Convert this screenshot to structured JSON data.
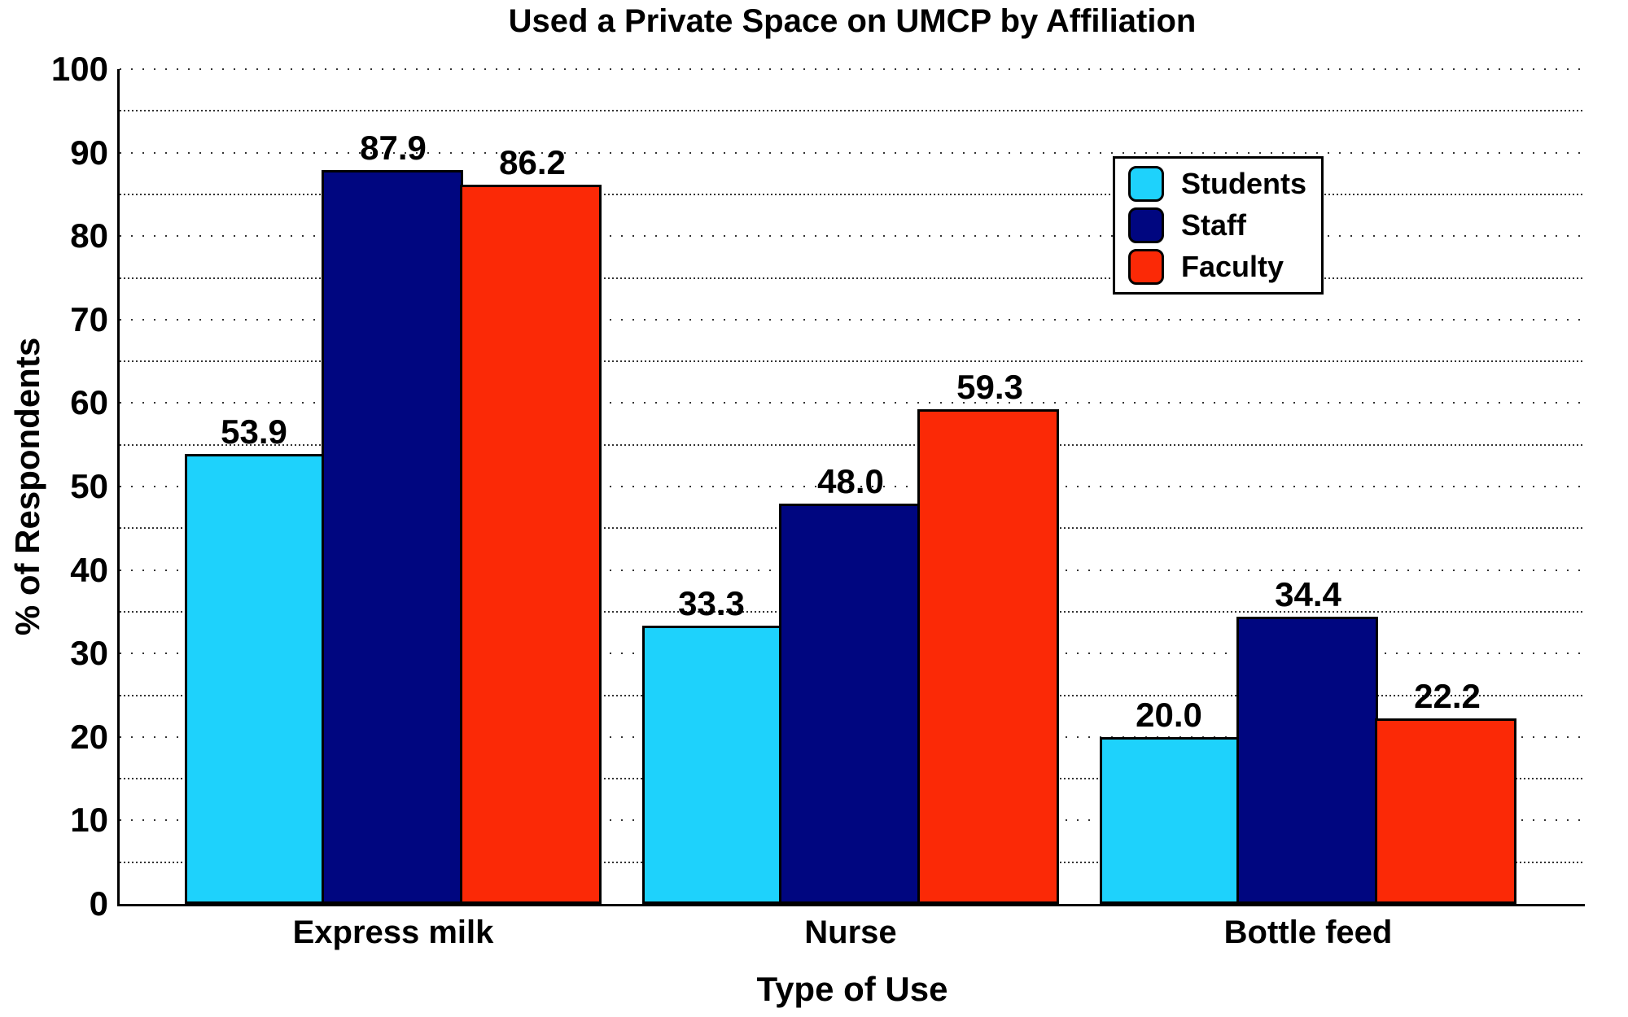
{
  "chart_data": {
    "type": "bar",
    "title": "Used a Private Space on UMCP by Affiliation",
    "xlabel": "Type of Use",
    "ylabel": "% of Respondents",
    "categories": [
      "Express milk",
      "Nurse",
      "Bottle feed"
    ],
    "series": [
      {
        "name": "Students",
        "color": "#1ED2FC",
        "values": [
          53.9,
          33.3,
          20.0
        ]
      },
      {
        "name": "Staff",
        "color": "#000680",
        "values": [
          87.9,
          48.0,
          34.4
        ]
      },
      {
        "name": "Faculty",
        "color": "#FB2906",
        "values": [
          86.2,
          59.3,
          22.2
        ]
      }
    ],
    "ylim": [
      0,
      100
    ],
    "yticks": [
      0,
      10,
      20,
      30,
      40,
      50,
      60,
      70,
      80,
      90,
      100
    ],
    "minor_grid_step": 5,
    "grid": "horizontal dotted, major and minor",
    "legend_position": "upper right inside plot",
    "bar_value_labels": true,
    "value_label_format": "one decimal place"
  }
}
